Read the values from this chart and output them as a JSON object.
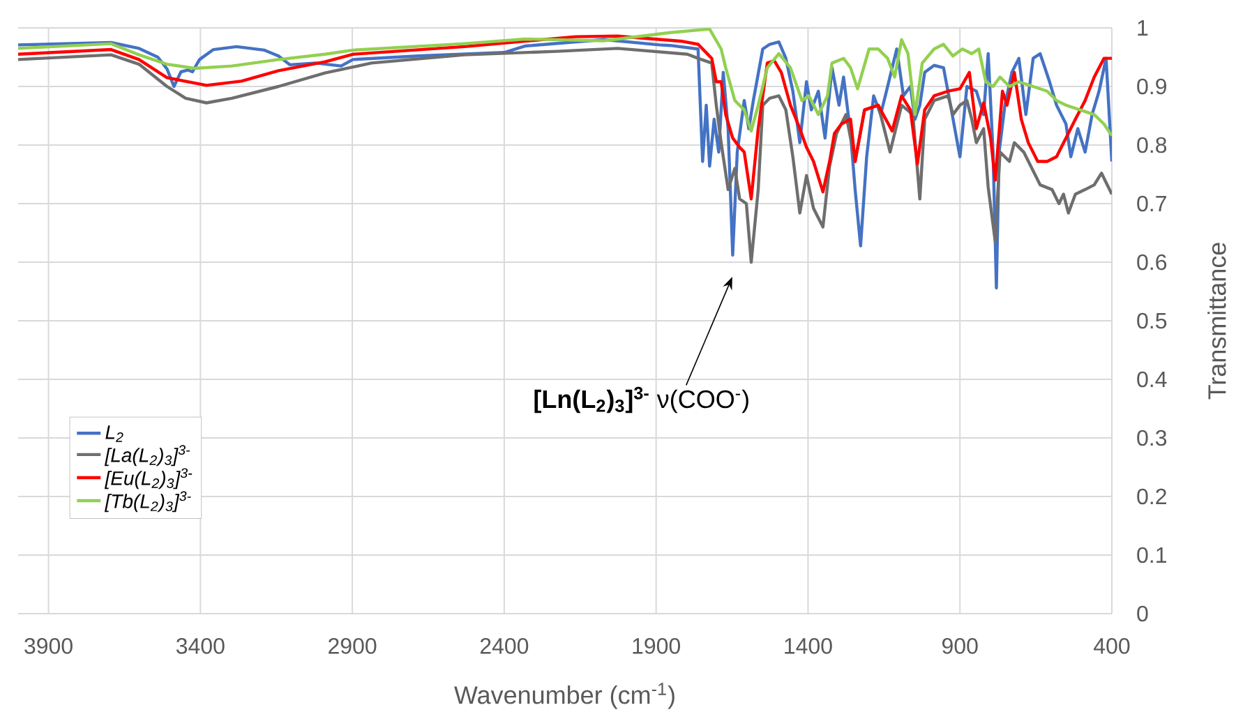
{
  "chart_data": {
    "type": "line",
    "xlabel": "Wavenumber (cm$^{-1}$)",
    "ylabel": "Transmittance",
    "xlim": [
      4000,
      400
    ],
    "xticks": [
      3900,
      3400,
      2900,
      2400,
      1900,
      1400,
      900,
      400
    ],
    "ylim": [
      0,
      1
    ],
    "yticks": [
      0,
      0.1,
      0.2,
      0.3,
      0.4,
      0.5,
      0.6,
      0.7,
      0.8,
      0.9,
      1
    ],
    "grid": true,
    "legend": "left",
    "marker": "none",
    "line_style": "solid",
    "annotations": [
      "**[Ln(L$_{2}$)$_{3}$]$^{3-}$** ν(COO$^{-}$)"
    ],
    "series": [
      {
        "name": "L$_{2}$",
        "color": "#4472c4",
        "x": [
          4000,
          3694,
          3602,
          3540,
          3510,
          3487,
          3464,
          3441,
          3426,
          3403,
          3357,
          3281,
          3189,
          3143,
          3105,
          3021,
          2937,
          2898,
          2684,
          2400,
          2332,
          2072,
          1889,
          1854,
          1762,
          1747,
          1735,
          1724,
          1709,
          1694,
          1679,
          1663,
          1648,
          1633,
          1610,
          1595,
          1580,
          1549,
          1526,
          1496,
          1473,
          1450,
          1427,
          1405,
          1389,
          1366,
          1344,
          1321,
          1298,
          1283,
          1260,
          1245,
          1227,
          1207,
          1184,
          1161,
          1138,
          1108,
          1086,
          1063,
          1048,
          1032,
          1016,
          985,
          954,
          931,
          900,
          877,
          846,
          822,
          807,
          791,
          780,
          771,
          752,
          729,
          706,
          683,
          659,
          636,
          605,
          582,
          551,
          535,
          512,
          488,
          465,
          442,
          419,
          400
        ],
        "values": [
          0.971,
          0.975,
          0.965,
          0.95,
          0.93,
          0.9,
          0.925,
          0.928,
          0.925,
          0.946,
          0.963,
          0.968,
          0.962,
          0.952,
          0.937,
          0.94,
          0.935,
          0.946,
          0.952,
          0.958,
          0.969,
          0.98,
          0.971,
          0.97,
          0.964,
          0.772,
          0.868,
          0.764,
          0.844,
          0.788,
          0.924,
          0.828,
          0.612,
          0.788,
          0.876,
          0.828,
          0.876,
          0.964,
          0.972,
          0.976,
          0.948,
          0.892,
          0.804,
          0.908,
          0.86,
          0.892,
          0.812,
          0.932,
          0.868,
          0.916,
          0.82,
          0.724,
          0.628,
          0.78,
          0.884,
          0.852,
          0.9,
          0.964,
          0.884,
          0.9,
          0.844,
          0.868,
          0.924,
          0.936,
          0.932,
          0.868,
          0.78,
          0.9,
          0.892,
          0.852,
          0.956,
          0.788,
          0.556,
          0.788,
          0.868,
          0.924,
          0.948,
          0.852,
          0.948,
          0.956,
          0.908,
          0.868,
          0.836,
          0.78,
          0.828,
          0.788,
          0.852,
          0.892,
          0.948,
          0.772
        ]
      },
      {
        "name": "[La(L$_{2}$)$_{3}$]$^{3-}$",
        "color": "#6e6e6e",
        "x": [
          4000,
          3694,
          3602,
          3510,
          3449,
          3380,
          3296,
          3143,
          2990,
          2837,
          2531,
          2226,
          2027,
          1797,
          1762,
          1717,
          1702,
          1686,
          1663,
          1641,
          1625,
          1603,
          1587,
          1564,
          1549,
          1526,
          1496,
          1473,
          1450,
          1427,
          1405,
          1382,
          1351,
          1329,
          1306,
          1275,
          1245,
          1214,
          1169,
          1130,
          1092,
          1055,
          1032,
          1016,
          985,
          939,
          923,
          900,
          877,
          861,
          846,
          822,
          807,
          784,
          768,
          737,
          721,
          690,
          659,
          636,
          597,
          574,
          559,
          543,
          520,
          488,
          458,
          434,
          400
        ],
        "values": [
          0.946,
          0.954,
          0.938,
          0.9,
          0.88,
          0.872,
          0.88,
          0.9,
          0.923,
          0.94,
          0.954,
          0.96,
          0.965,
          0.955,
          0.948,
          0.94,
          0.868,
          0.804,
          0.724,
          0.76,
          0.708,
          0.7,
          0.6,
          0.724,
          0.868,
          0.88,
          0.884,
          0.86,
          0.78,
          0.684,
          0.748,
          0.692,
          0.66,
          0.764,
          0.82,
          0.852,
          0.772,
          0.86,
          0.868,
          0.788,
          0.868,
          0.852,
          0.708,
          0.844,
          0.876,
          0.884,
          0.852,
          0.868,
          0.876,
          0.844,
          0.804,
          0.828,
          0.728,
          0.636,
          0.788,
          0.772,
          0.804,
          0.788,
          0.756,
          0.732,
          0.724,
          0.7,
          0.716,
          0.684,
          0.716,
          0.724,
          0.732,
          0.752,
          0.716
        ]
      },
      {
        "name": "[Eu(L$_{2}$)$_{3}$]$^{3-}$",
        "color": "#ff0000",
        "x": [
          4000,
          3694,
          3602,
          3510,
          3380,
          3265,
          3143,
          2990,
          2898,
          2531,
          2165,
          2027,
          1813,
          1762,
          1717,
          1702,
          1686,
          1671,
          1648,
          1625,
          1610,
          1587,
          1564,
          1534,
          1511,
          1488,
          1458,
          1427,
          1405,
          1382,
          1351,
          1329,
          1313,
          1290,
          1260,
          1245,
          1214,
          1169,
          1123,
          1092,
          1063,
          1040,
          1016,
          985,
          939,
          900,
          869,
          846,
          822,
          799,
          784,
          760,
          745,
          721,
          698,
          675,
          644,
          613,
          582,
          551,
          520,
          488,
          458,
          426,
          400
        ],
        "values": [
          0.955,
          0.963,
          0.946,
          0.915,
          0.902,
          0.909,
          0.927,
          0.942,
          0.955,
          0.968,
          0.985,
          0.986,
          0.977,
          0.972,
          0.948,
          0.908,
          0.908,
          0.852,
          0.812,
          0.796,
          0.788,
          0.708,
          0.828,
          0.94,
          0.944,
          0.924,
          0.868,
          0.828,
          0.796,
          0.772,
          0.72,
          0.772,
          0.82,
          0.836,
          0.844,
          0.772,
          0.86,
          0.868,
          0.824,
          0.884,
          0.86,
          0.768,
          0.86,
          0.884,
          0.892,
          0.896,
          0.924,
          0.828,
          0.872,
          0.812,
          0.74,
          0.892,
          0.868,
          0.924,
          0.844,
          0.804,
          0.772,
          0.772,
          0.78,
          0.812,
          0.844,
          0.876,
          0.916,
          0.948,
          0.948
        ]
      },
      {
        "name": "[Tb(L$_{2}$)$_{3}$]$^{3-}$",
        "color": "#92d050",
        "x": [
          4000,
          3694,
          3602,
          3510,
          3418,
          3296,
          3143,
          2990,
          2898,
          2531,
          2332,
          2073,
          1854,
          1724,
          1686,
          1671,
          1641,
          1610,
          1587,
          1564,
          1534,
          1496,
          1458,
          1420,
          1397,
          1366,
          1336,
          1321,
          1283,
          1260,
          1237,
          1199,
          1169,
          1138,
          1115,
          1092,
          1071,
          1048,
          1024,
          985,
          954,
          923,
          892,
          861,
          838,
          815,
          791,
          768,
          737,
          706,
          659,
          613,
          582,
          551,
          504,
          458,
          426,
          400
        ],
        "values": [
          0.965,
          0.973,
          0.954,
          0.938,
          0.931,
          0.935,
          0.946,
          0.955,
          0.962,
          0.973,
          0.981,
          0.978,
          0.992,
          0.998,
          0.964,
          0.932,
          0.876,
          0.86,
          0.824,
          0.868,
          0.932,
          0.956,
          0.932,
          0.876,
          0.884,
          0.852,
          0.884,
          0.94,
          0.948,
          0.932,
          0.896,
          0.964,
          0.964,
          0.948,
          0.916,
          0.98,
          0.956,
          0.852,
          0.94,
          0.964,
          0.972,
          0.952,
          0.964,
          0.956,
          0.964,
          0.908,
          0.9,
          0.916,
          0.9,
          0.908,
          0.9,
          0.892,
          0.876,
          0.868,
          0.86,
          0.852,
          0.836,
          0.816
        ]
      }
    ]
  }
}
